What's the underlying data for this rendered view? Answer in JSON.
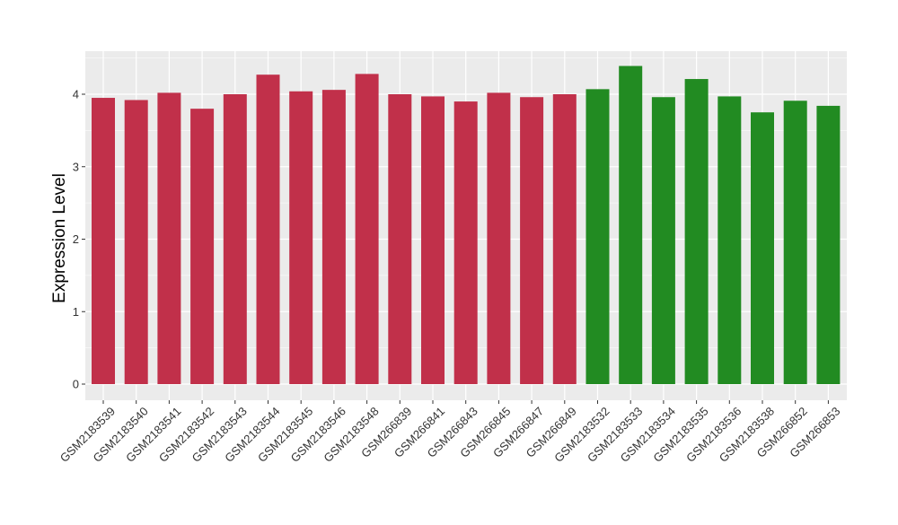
{
  "chart_data": {
    "type": "bar",
    "title": "",
    "xlabel": "",
    "ylabel": "Expression Level",
    "ylim": [
      0,
      4.6
    ],
    "yticks": [
      0,
      1,
      2,
      3,
      4
    ],
    "grid": true,
    "legend": "none",
    "categories": [
      "GSM2183539",
      "GSM2183540",
      "GSM2183541",
      "GSM2183542",
      "GSM2183543",
      "GSM2183544",
      "GSM2183545",
      "GSM2183546",
      "GSM2183548",
      "GSM266839",
      "GSM266841",
      "GSM266843",
      "GSM266845",
      "GSM266847",
      "GSM266849",
      "GSM2183532",
      "GSM2183533",
      "GSM2183534",
      "GSM2183535",
      "GSM2183536",
      "GSM2183538",
      "GSM266852",
      "GSM266853"
    ],
    "values": [
      3.95,
      3.92,
      4.02,
      3.8,
      4.0,
      4.27,
      4.04,
      4.06,
      4.28,
      4.0,
      3.97,
      3.9,
      4.02,
      3.96,
      4.0,
      4.07,
      4.39,
      3.96,
      4.21,
      3.97,
      3.75,
      3.91,
      3.84
    ],
    "groups": [
      "a",
      "a",
      "a",
      "a",
      "a",
      "a",
      "a",
      "a",
      "a",
      "a",
      "a",
      "a",
      "a",
      "a",
      "a",
      "b",
      "b",
      "b",
      "b",
      "b",
      "b",
      "b",
      "b"
    ],
    "colors": {
      "a": "#C1304A",
      "b": "#228B22"
    },
    "panel_background": "#EBEBEB",
    "gridline_color": "#FFFFFF"
  }
}
